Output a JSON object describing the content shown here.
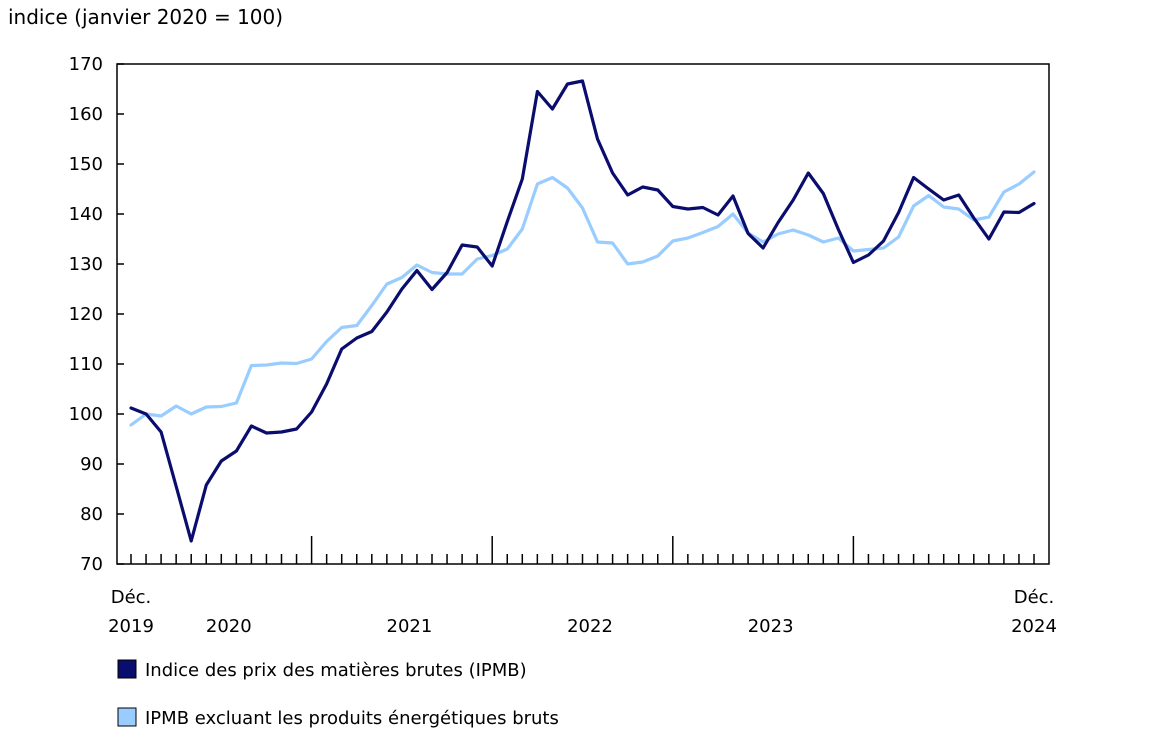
{
  "chart_data": {
    "type": "line",
    "ylabel": "indice (janvier 2020 = 100)",
    "ylim": [
      70,
      170
    ],
    "yticks": [
      70,
      80,
      90,
      100,
      110,
      120,
      130,
      140,
      150,
      160,
      170
    ],
    "x_start": "Déc. 2019",
    "x_end": "Déc. 2024",
    "x_labels": [
      {
        "month_index": 0,
        "line1": "Déc.",
        "line2": "2019"
      },
      {
        "month_index": 6.5,
        "line1": "",
        "line2": "2020"
      },
      {
        "month_index": 18.5,
        "line1": "",
        "line2": "2021"
      },
      {
        "month_index": 30.5,
        "line1": "",
        "line2": "2022"
      },
      {
        "month_index": 42.5,
        "line1": "",
        "line2": "2023"
      },
      {
        "month_index": 60,
        "line1": "Déc.",
        "line2": "2024"
      }
    ],
    "grid": false,
    "legend_position": "bottom-left",
    "series": [
      {
        "name": "Indice des prix des matières brutes (IPMB)",
        "color": "#0b0d6e",
        "values": [
          101.2,
          100.0,
          96.4,
          85.5,
          74.6,
          85.8,
          90.6,
          92.6,
          97.6,
          96.2,
          96.4,
          97.0,
          100.4,
          106.0,
          113.0,
          115.2,
          116.5,
          120.4,
          125.0,
          128.7,
          124.9,
          128.3,
          133.8,
          133.4,
          129.6,
          138.5,
          147.0,
          164.5,
          161.0,
          166.0,
          166.6,
          155.0,
          148.2,
          143.8,
          145.4,
          144.8,
          141.5,
          141.0,
          141.3,
          139.8,
          143.6,
          136.1,
          133.2,
          138.3,
          142.8,
          148.2,
          144.1,
          136.9,
          130.3,
          131.8,
          134.6,
          140.3,
          147.3,
          145.0,
          142.8,
          143.8,
          139.2,
          135.0,
          140.4,
          140.3,
          142.1
        ]
      },
      {
        "name": "IPMB excluant les produits énergétiques bruts",
        "color": "#99ccff",
        "values": [
          97.8,
          100.0,
          99.6,
          101.6,
          100.0,
          101.4,
          101.5,
          102.2,
          109.7,
          109.8,
          110.2,
          110.1,
          111.0,
          114.5,
          117.3,
          117.7,
          121.7,
          126.0,
          127.3,
          129.8,
          128.3,
          128.0,
          128.0,
          131.0,
          131.7,
          133.0,
          137.0,
          146.0,
          147.3,
          145.2,
          141.2,
          134.4,
          134.2,
          130.0,
          130.4,
          131.6,
          134.6,
          135.2,
          136.3,
          137.5,
          140.0,
          136.2,
          134.4,
          136.0,
          136.8,
          135.8,
          134.4,
          135.2,
          132.6,
          132.9,
          133.2,
          135.4,
          141.6,
          143.7,
          141.4,
          141.0,
          138.8,
          139.4,
          144.4,
          146.0,
          148.4
        ]
      }
    ]
  }
}
